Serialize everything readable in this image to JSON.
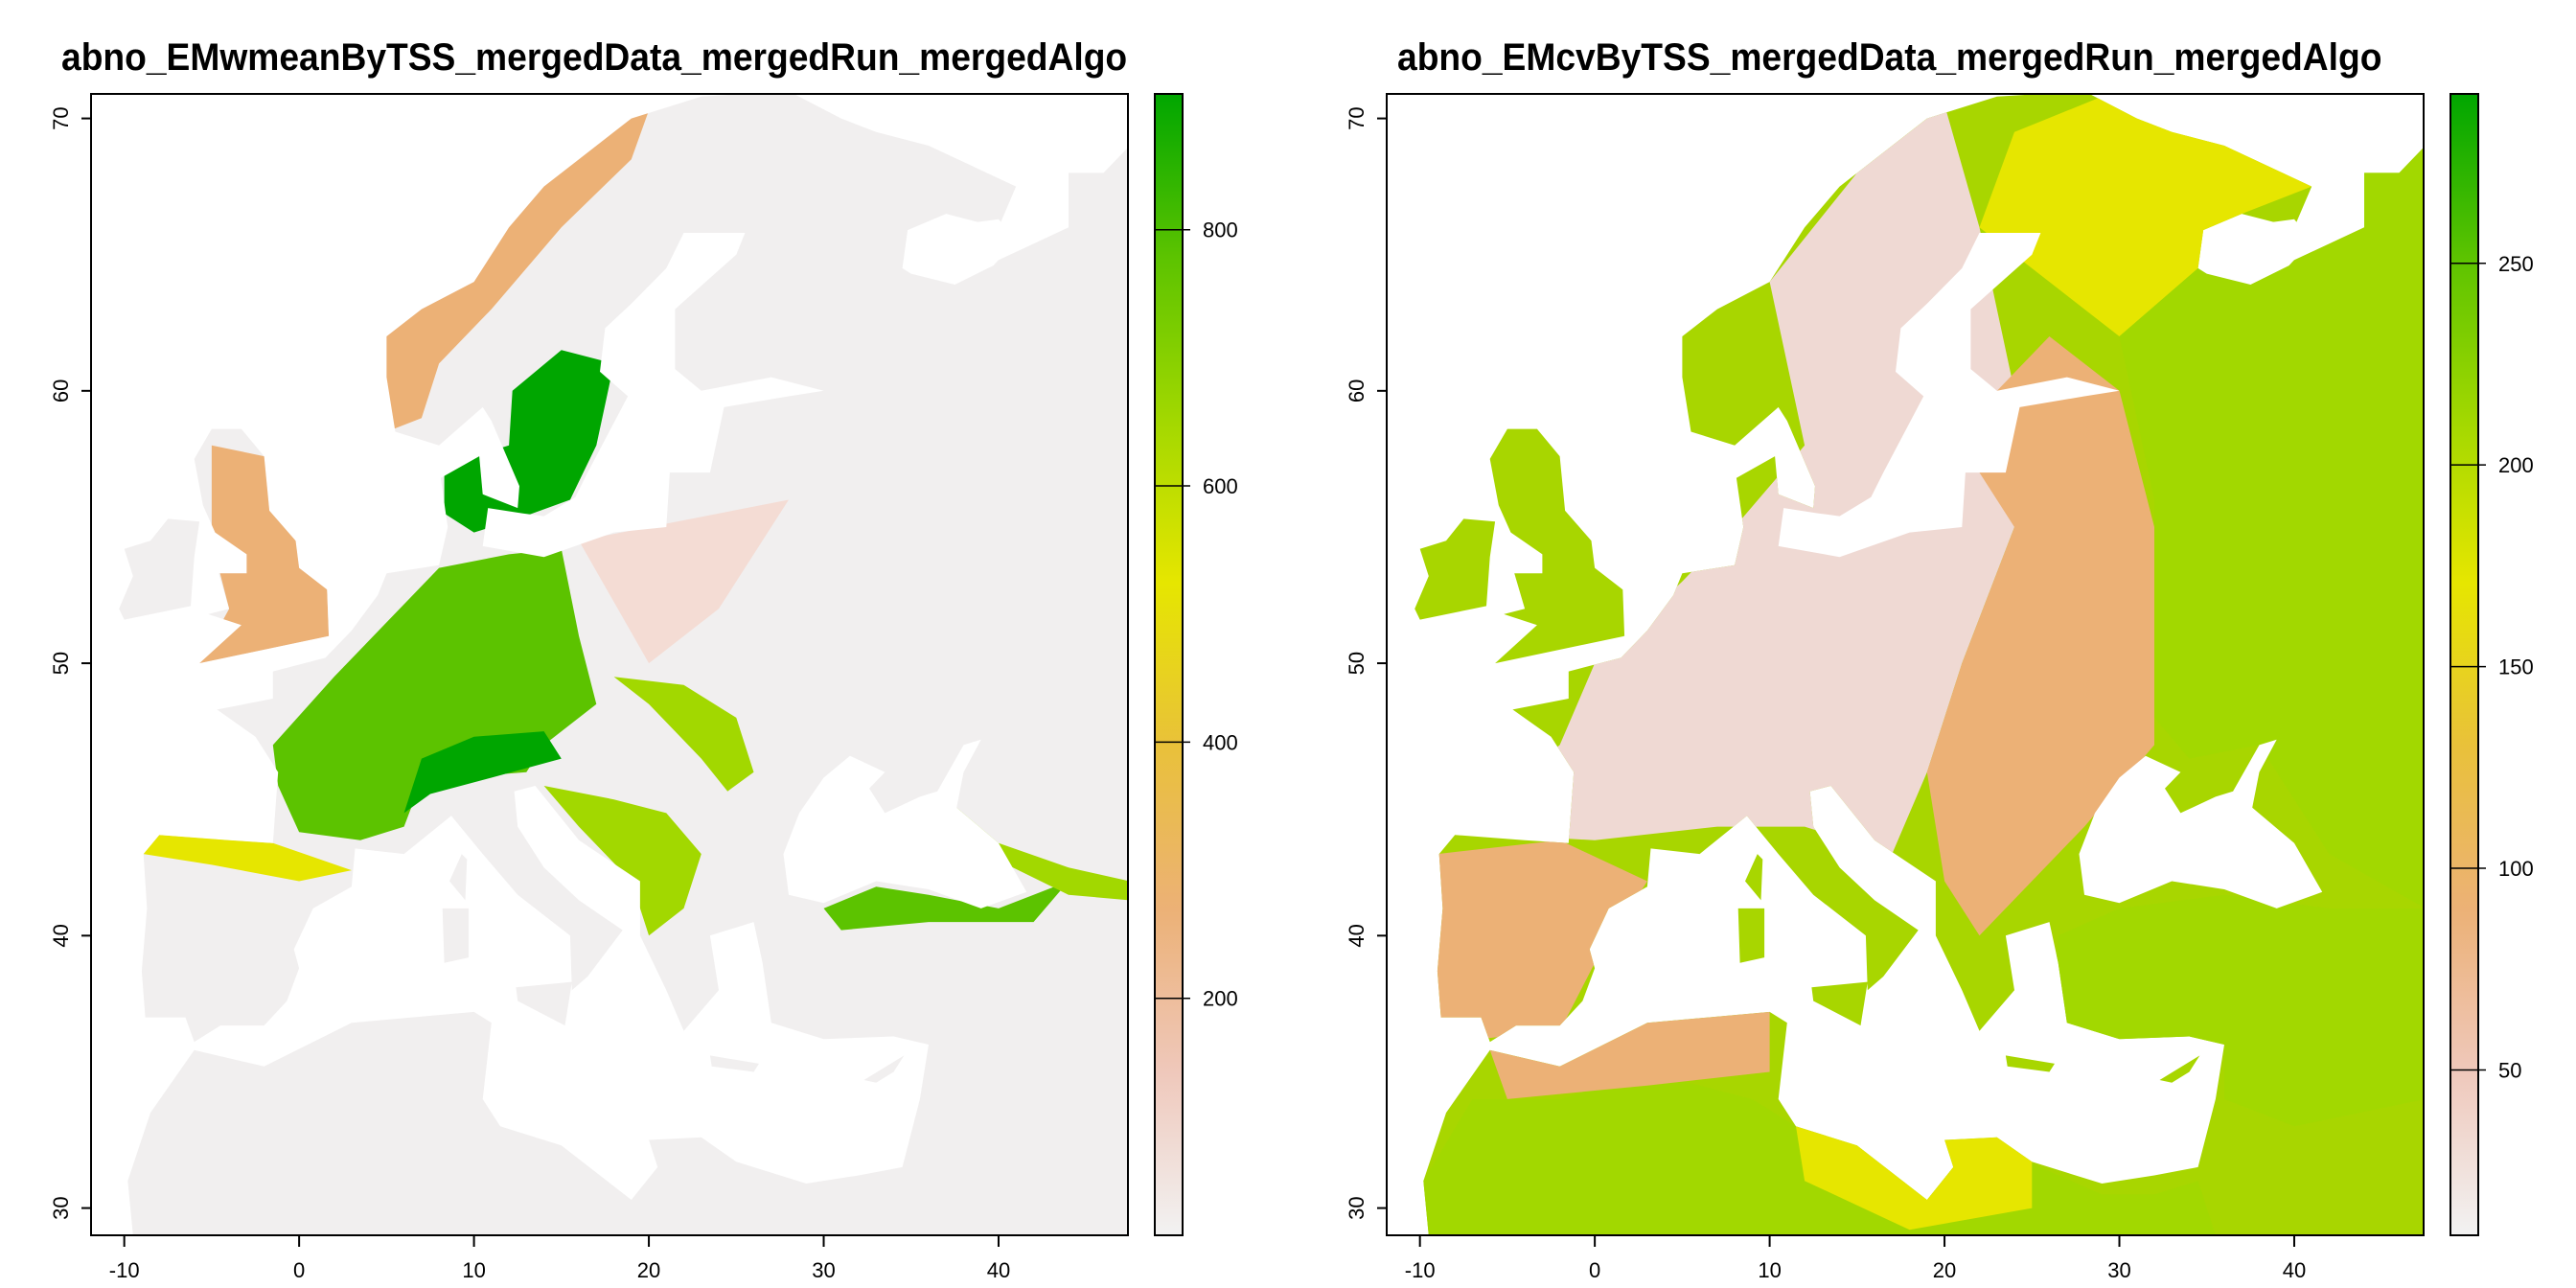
{
  "chart_data": [
    {
      "type": "heatmap",
      "title": "abno_EMwmeanByTSS_mergedData_mergedRun_mergedAlgo",
      "xlim": [
        -11.9,
        47.4
      ],
      "ylim": [
        29.0,
        70.9
      ],
      "x_ticks": [
        -10,
        0,
        10,
        20,
        30,
        40
      ],
      "y_ticks": [
        30,
        40,
        50,
        60,
        70
      ],
      "legend": {
        "position": "right",
        "range": [
          15,
          906
        ],
        "ticks": [
          200,
          400,
          600,
          800
        ]
      },
      "description_of_values": "high (green, 600-900) across central Europe, Denmark/southern Sweden, Alps, Carpathians and Balkan mountains, northern Turkey coast; medium (orange 200-400) in Britain, Norway coast, northern Iberia; low (near 0-100) in eastern Europe, Russia, North Africa and the Mediterranean"
    },
    {
      "type": "heatmap",
      "title": "abno_EMcvByTSS_mergedData_mergedRun_mergedAlgo",
      "xlim": [
        -11.9,
        47.4
      ],
      "ylim": [
        29.0,
        70.9
      ],
      "x_ticks": [
        -10,
        0,
        10,
        20,
        30,
        40
      ],
      "y_ticks": [
        30,
        40,
        50,
        60,
        70
      ],
      "legend": {
        "position": "right",
        "range": [
          9,
          292
        ],
        "ticks": [
          50,
          100,
          150,
          200,
          250
        ]
      },
      "description_of_values": "low (pale pink, below 50) in western/central Europe and Scandinavia; medium (orange 80-120) in Iberia, eastern Europe, Balkans; high (yellow-green 150-220) in Russia, northern Finland, Turkey and North Africa"
    }
  ],
  "colors": {
    "scale": [
      "#f2f2f2",
      "#efc8bb",
      "#ecb176",
      "#e9c13a",
      "#e6e600",
      "#a2d800",
      "#5cc300",
      "#00a600"
    ],
    "sea": "#ffffff"
  }
}
